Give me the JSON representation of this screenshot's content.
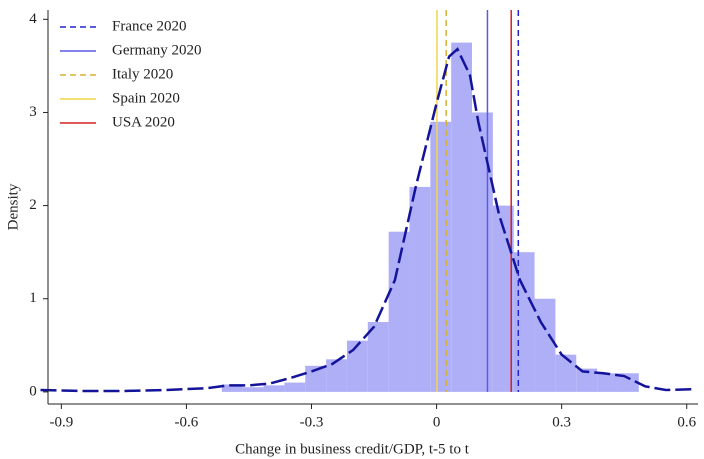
{
  "chart_data": {
    "type": "histogram",
    "x_label": "Change in business credit/GDP, t-5 to t",
    "y_label": "Density",
    "bins": [
      -0.515,
      -0.465,
      -0.415,
      -0.365,
      -0.315,
      -0.265,
      -0.215,
      -0.165,
      -0.115,
      -0.065,
      -0.015,
      0.035,
      0.085,
      0.135,
      0.185,
      0.235,
      0.285,
      0.335,
      0.385,
      0.435,
      0.485
    ],
    "values": [
      0.08,
      0.05,
      0.07,
      0.1,
      0.28,
      0.35,
      0.55,
      0.75,
      1.72,
      2.2,
      2.9,
      3.75,
      3.0,
      2.0,
      1.5,
      1.0,
      0.4,
      0.25,
      0.2,
      0.2
    ],
    "color": "#afaff7",
    "density": {
      "color": "#14149a",
      "x": [
        -0.95,
        -0.85,
        -0.75,
        -0.65,
        -0.55,
        -0.5,
        -0.45,
        -0.4,
        -0.35,
        -0.3,
        -0.25,
        -0.2,
        -0.15,
        -0.1,
        -0.05,
        0,
        0.03,
        0.05,
        0.08,
        0.1,
        0.15,
        0.2,
        0.25,
        0.3,
        0.35,
        0.4,
        0.45,
        0.5,
        0.55,
        0.62
      ],
      "values": [
        0.02,
        0.01,
        0.01,
        0.02,
        0.04,
        0.07,
        0.07,
        0.09,
        0.15,
        0.22,
        0.3,
        0.45,
        0.7,
        1.2,
        2.2,
        3.1,
        3.6,
        3.68,
        3.4,
        2.9,
        1.9,
        1.2,
        0.75,
        0.4,
        0.22,
        0.2,
        0.17,
        0.06,
        0.02,
        0.03
      ]
    },
    "lines": [
      {
        "name": "France 2020",
        "x": 0.196,
        "color": "#2323d0",
        "dashed": true
      },
      {
        "name": "Germany 2020",
        "x": 0.122,
        "color": "#5a5ae6",
        "dashed": false
      },
      {
        "name": "Italy 2020",
        "x": 0.023,
        "color": "#d6b033",
        "dashed": true
      },
      {
        "name": "Spain 2020",
        "x": 0.001,
        "color": "#f2d54a",
        "dashed": false
      },
      {
        "name": "USA 2020",
        "x": 0.179,
        "color": "#d42020",
        "dashed": false
      }
    ],
    "legend": "upper left",
    "xlim": [
      -0.932,
      0.627
    ],
    "ylim": [
      -0.13,
      4.1
    ],
    "xticks": [
      -0.9,
      -0.6,
      -0.3,
      0,
      0.3,
      0.6
    ],
    "yticks": [
      0,
      1,
      2,
      3,
      4
    ]
  }
}
